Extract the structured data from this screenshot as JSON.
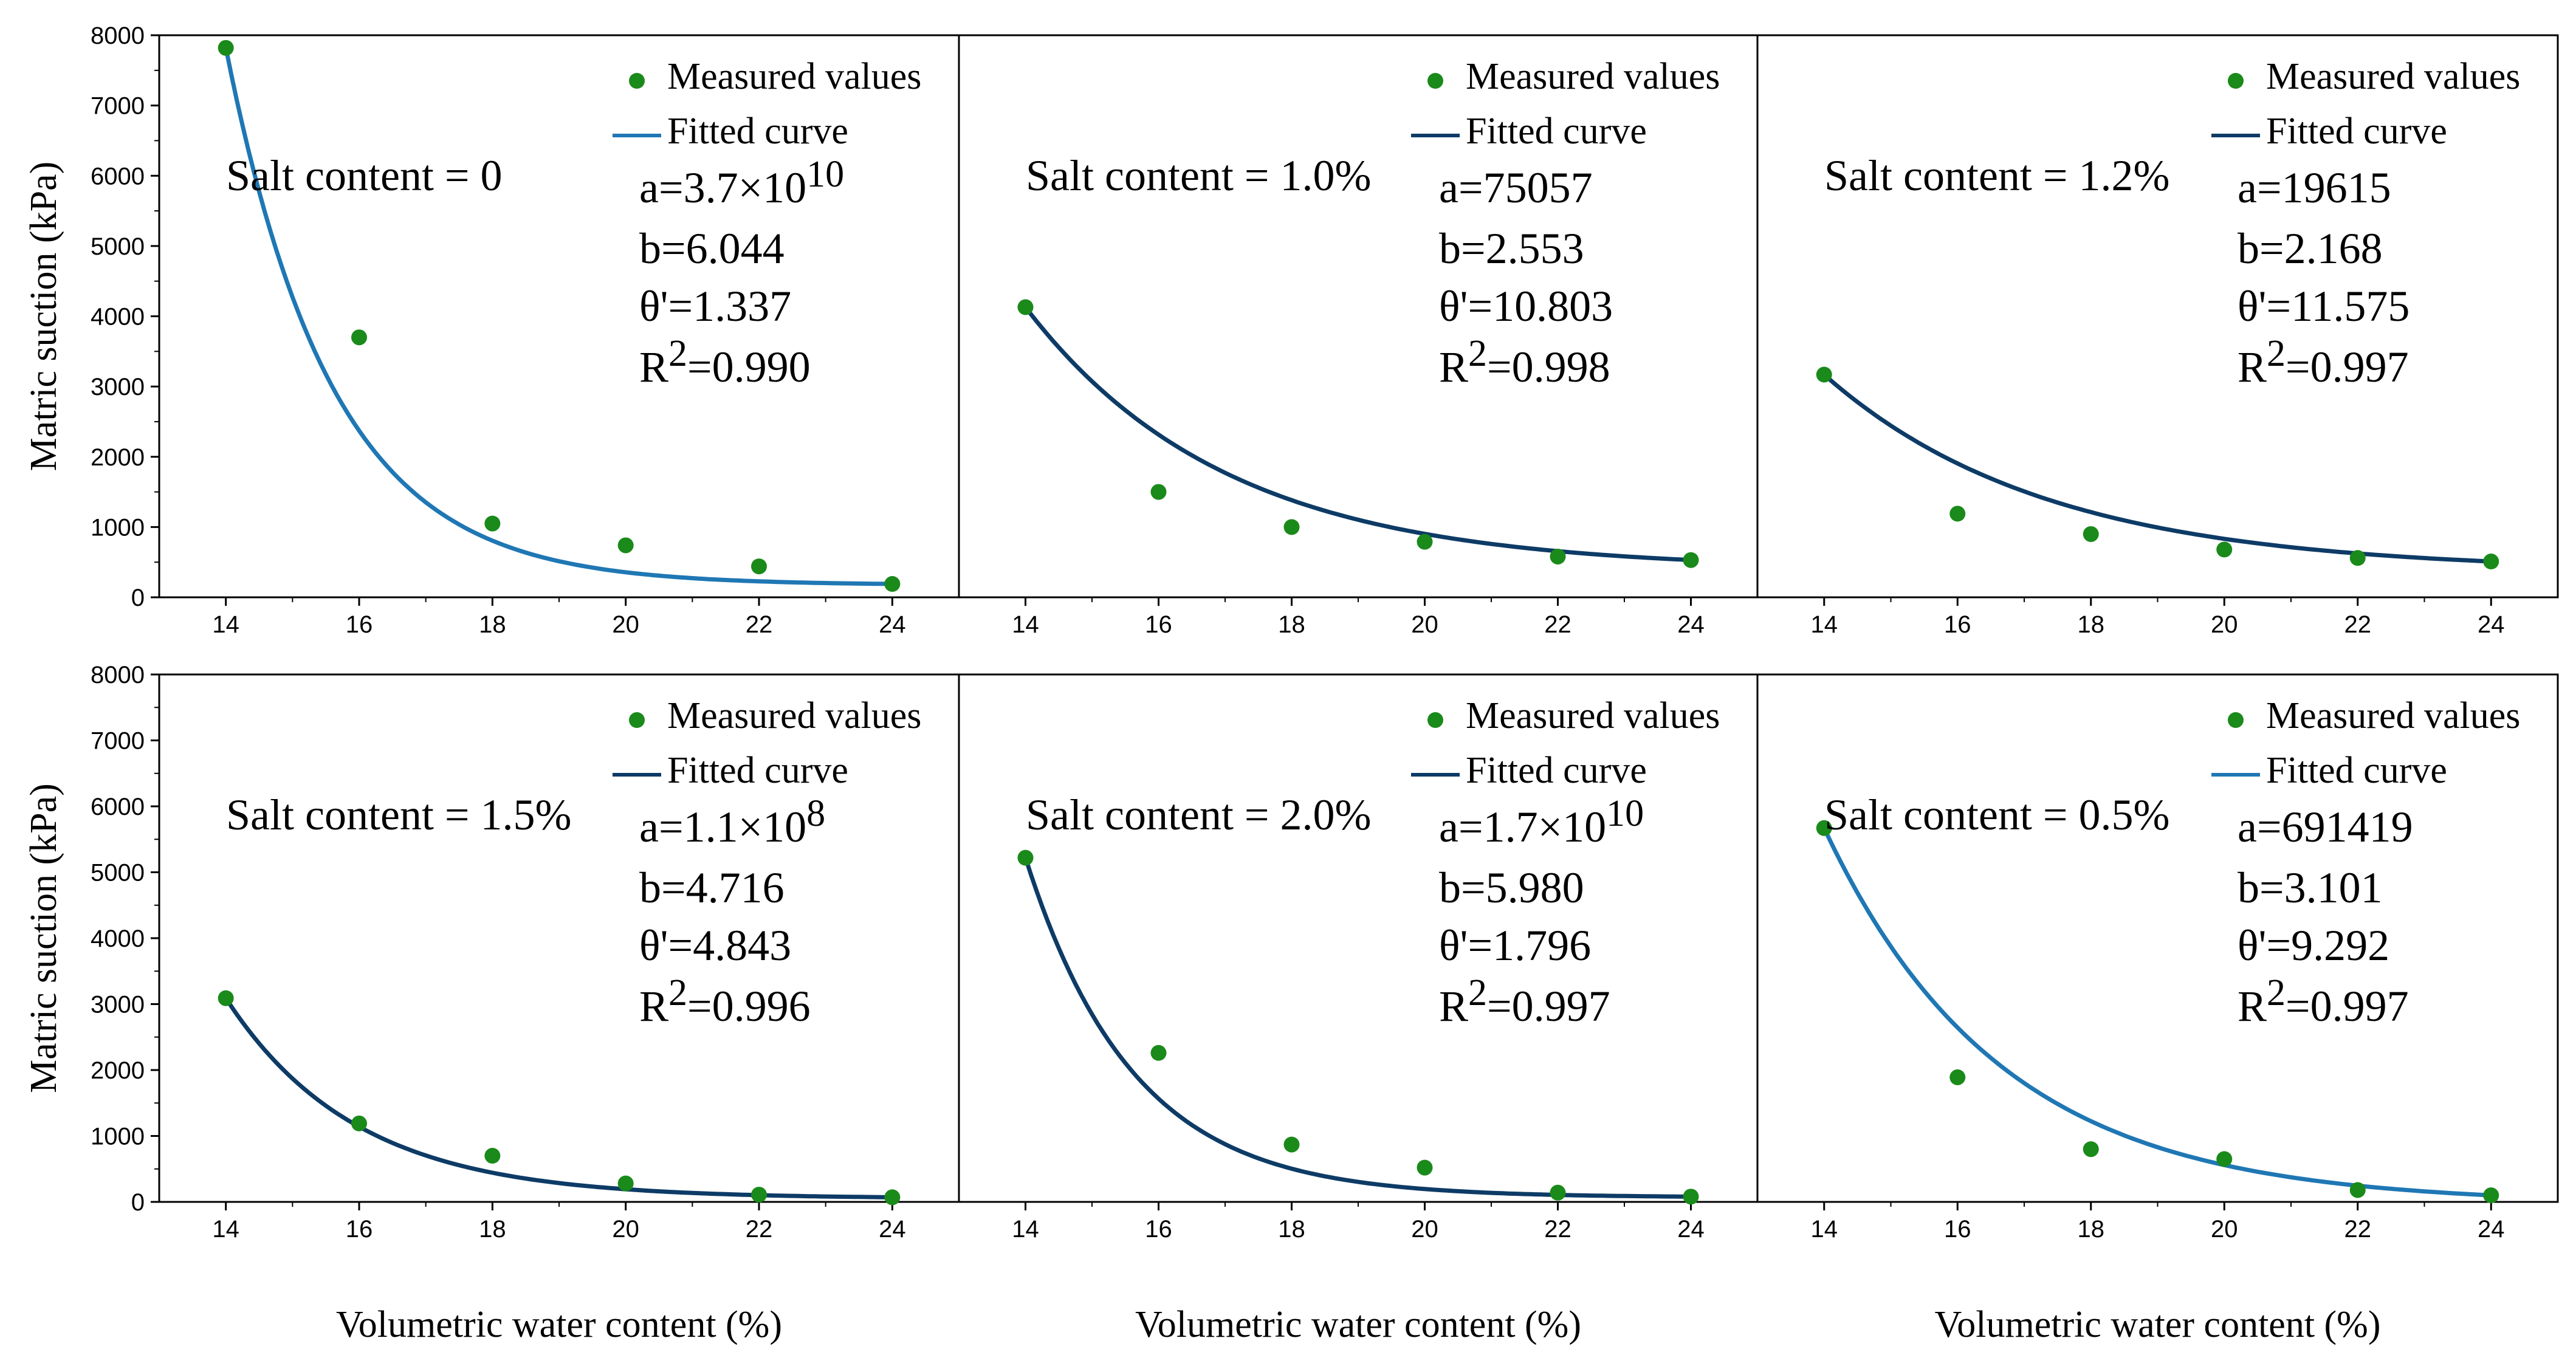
{
  "chart_data": {
    "type": "scatter",
    "xlabel": "Volumetric water content (%)",
    "ylabel": "Matric suction (kPa)",
    "xlim": [
      13,
      25
    ],
    "ylim": [
      0,
      8000
    ],
    "x_ticks": [
      14,
      16,
      18,
      20,
      22,
      24
    ],
    "y_ticks": [
      0,
      1000,
      2000,
      3000,
      4000,
      5000,
      6000,
      7000,
      8000
    ],
    "legend": {
      "measured": "Measured values",
      "fitted": "Fitted curve",
      "position": "top-right"
    },
    "colors": {
      "measured": "#1a8a1a",
      "fit_light": "#1f77b4",
      "fit_dark": "#0d3b66"
    },
    "panels": [
      {
        "salt_label": "Salt content = 0",
        "fit_color": "fit_light",
        "x": [
          14,
          16,
          18,
          20,
          22,
          24
        ],
        "measured": [
          7820,
          3700,
          1050,
          740,
          440,
          190
        ],
        "params": {
          "a": 37000000000.0,
          "b": 6.044,
          "theta": 1.337
        },
        "a_text": {
          "base": "a=3.7×10",
          "exp": "10"
        },
        "b_text": "b=6.044",
        "theta_text": "θ'=1.337",
        "r2_text": {
          "pre": "R",
          "exp": "2",
          "post": "=0.990"
        }
      },
      {
        "salt_label": "Salt content = 1.0%",
        "fit_color": "fit_dark",
        "x": [
          14,
          16,
          18,
          20,
          22,
          24
        ],
        "measured": [
          4130,
          1500,
          1000,
          790,
          580,
          530
        ],
        "params": {
          "a": 75057,
          "b": 2.553,
          "theta": 10.803
        },
        "a_text": {
          "base": "a=75057",
          "exp": ""
        },
        "b_text": "b=2.553",
        "theta_text": "θ'=10.803",
        "r2_text": {
          "pre": "R",
          "exp": "2",
          "post": "=0.998"
        }
      },
      {
        "salt_label": "Salt content = 1.2%",
        "fit_color": "fit_dark",
        "x": [
          14,
          16,
          18,
          20,
          22,
          24
        ],
        "measured": [
          3170,
          1190,
          900,
          680,
          560,
          510
        ],
        "params": {
          "a": 19615,
          "b": 2.168,
          "theta": 11.575
        },
        "a_text": {
          "base": "a=19615",
          "exp": ""
        },
        "b_text": "b=2.168",
        "theta_text": "θ'=11.575",
        "r2_text": {
          "pre": "R",
          "exp": "2",
          "post": "=0.997"
        }
      },
      {
        "salt_label": "Salt content = 1.5%",
        "fit_color": "fit_dark",
        "x": [
          14,
          16,
          18,
          20,
          22,
          24
        ],
        "measured": [
          3090,
          1190,
          700,
          280,
          110,
          70
        ],
        "params": {
          "a": 110000000.0,
          "b": 4.716,
          "theta": 4.843
        },
        "a_text": {
          "base": "a=1.1×10",
          "exp": "8"
        },
        "b_text": "b=4.716",
        "theta_text": "θ'=4.843",
        "r2_text": {
          "pre": "R",
          "exp": "2",
          "post": "=0.996"
        }
      },
      {
        "salt_label": "Salt content = 2.0%",
        "fit_color": "fit_dark",
        "x": [
          14,
          16,
          18,
          20,
          22,
          24
        ],
        "measured": [
          5220,
          2260,
          870,
          520,
          140,
          80
        ],
        "params": {
          "a": 17000000000.0,
          "b": 5.98,
          "theta": 1.796
        },
        "a_text": {
          "base": "a=1.7×10",
          "exp": "10"
        },
        "b_text": "b=5.980",
        "theta_text": "θ'=1.796",
        "r2_text": {
          "pre": "R",
          "exp": "2",
          "post": "=0.997"
        }
      },
      {
        "salt_label": "Salt content = 0.5%",
        "fit_color": "fit_light",
        "x": [
          14,
          16,
          18,
          20,
          22,
          24
        ],
        "measured": [
          5670,
          1890,
          800,
          650,
          180,
          100
        ],
        "params": {
          "a": 691419,
          "b": 3.101,
          "theta": 9.292
        },
        "a_text": {
          "base": "a=691419",
          "exp": ""
        },
        "b_text": "b=3.101",
        "theta_text": "θ'=9.292",
        "r2_text": {
          "pre": "R",
          "exp": "2",
          "post": "=0.997"
        }
      }
    ]
  }
}
